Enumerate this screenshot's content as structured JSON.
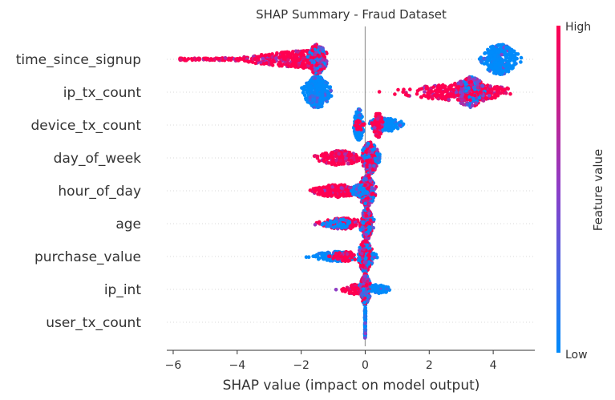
{
  "chart_data": {
    "type": "scatter",
    "title": "SHAP Summary - Fraud Dataset",
    "xlabel": "SHAP value (impact on model output)",
    "xlim": [
      -6.2,
      5.3
    ],
    "xticks": [
      -6,
      -4,
      -2,
      0,
      2,
      4
    ],
    "xtick_labels": [
      "−6",
      "−4",
      "−2",
      "0",
      "2",
      "4"
    ],
    "features": [
      {
        "name": "time_since_signup",
        "clusters": [
          {
            "x_min": -5.8,
            "x_max": -1.45,
            "center": -1.6,
            "spread": 2.6,
            "half_height": 0.55,
            "color": "high",
            "count": 420
          },
          {
            "x_min": -1.9,
            "x_max": -1.2,
            "center": -1.5,
            "spread": 0.4,
            "half_height": 0.95,
            "color": "mid",
            "count": 220
          },
          {
            "x_min": 3.2,
            "x_max": 4.9,
            "center": 4.2,
            "spread": 0.75,
            "half_height": 0.95,
            "color": "low",
            "count": 320
          }
        ]
      },
      {
        "name": "ip_tx_count",
        "clusters": [
          {
            "x_min": -2.1,
            "x_max": -0.9,
            "center": -1.5,
            "spread": 0.55,
            "half_height": 1.0,
            "color": "low",
            "count": 340
          },
          {
            "x_min": -0.9,
            "x_max": 4.6,
            "center": 3.0,
            "spread": 2.2,
            "half_height": 0.55,
            "color": "high",
            "count": 380
          },
          {
            "x_min": 2.6,
            "x_max": 4.7,
            "center": 3.3,
            "spread": 0.7,
            "half_height": 0.95,
            "color": "mid",
            "count": 180
          }
        ]
      },
      {
        "name": "device_tx_count",
        "clusters": [
          {
            "x_min": -0.4,
            "x_max": -0.05,
            "center": -0.2,
            "spread": 0.2,
            "half_height": 1.0,
            "color": "low",
            "count": 170
          },
          {
            "x_min": 0.1,
            "x_max": 1.5,
            "center": 0.6,
            "spread": 0.8,
            "half_height": 0.45,
            "color": "low",
            "count": 150
          },
          {
            "x_min": 0.2,
            "x_max": 0.55,
            "center": 0.4,
            "spread": 0.25,
            "half_height": 0.8,
            "color": "high",
            "count": 80
          },
          {
            "x_min": -0.4,
            "x_max": 0.0,
            "center": -0.2,
            "spread": 0.2,
            "half_height": 0.35,
            "color": "high",
            "count": 20
          }
        ]
      },
      {
        "name": "day_of_week",
        "clusters": [
          {
            "x_min": -1.6,
            "x_max": -0.2,
            "center": -0.8,
            "spread": 0.9,
            "half_height": 0.45,
            "color": "high",
            "count": 180
          },
          {
            "x_min": -0.2,
            "x_max": 0.5,
            "center": 0.15,
            "spread": 0.35,
            "half_height": 1.0,
            "color": "mid",
            "count": 260
          },
          {
            "x_min": 0.3,
            "x_max": 0.5,
            "center": 0.4,
            "spread": 0.15,
            "half_height": 0.3,
            "color": "low",
            "count": 25
          }
        ]
      },
      {
        "name": "hour_of_day",
        "clusters": [
          {
            "x_min": -1.95,
            "x_max": -0.3,
            "center": -0.9,
            "spread": 1.0,
            "half_height": 0.4,
            "color": "high",
            "count": 200
          },
          {
            "x_min": -0.3,
            "x_max": 0.45,
            "center": 0.05,
            "spread": 0.35,
            "half_height": 1.0,
            "color": "mid",
            "count": 260
          },
          {
            "x_min": -0.6,
            "x_max": 0.2,
            "center": -0.2,
            "spread": 0.4,
            "half_height": 0.35,
            "color": "low",
            "count": 40
          }
        ]
      },
      {
        "name": "age",
        "clusters": [
          {
            "x_min": -1.6,
            "x_max": -0.2,
            "center": -0.7,
            "spread": 0.9,
            "half_height": 0.35,
            "color": "high",
            "count": 160
          },
          {
            "x_min": -0.2,
            "x_max": 0.35,
            "center": 0.05,
            "spread": 0.25,
            "half_height": 1.0,
            "color": "mid",
            "count": 220
          },
          {
            "x_min": -1.6,
            "x_max": -0.4,
            "center": -0.9,
            "spread": 0.7,
            "half_height": 0.3,
            "color": "low",
            "count": 40
          }
        ]
      },
      {
        "name": "purchase_value",
        "clusters": [
          {
            "x_min": -1.85,
            "x_max": -0.3,
            "center": -0.9,
            "spread": 1.0,
            "half_height": 0.3,
            "color": "low",
            "count": 170
          },
          {
            "x_min": -1.2,
            "x_max": -0.3,
            "center": -0.6,
            "spread": 0.6,
            "half_height": 0.3,
            "color": "high",
            "count": 60
          },
          {
            "x_min": -0.3,
            "x_max": 0.3,
            "center": 0.0,
            "spread": 0.3,
            "half_height": 1.0,
            "color": "mid",
            "count": 240
          },
          {
            "x_min": 0.2,
            "x_max": 0.55,
            "center": 0.3,
            "spread": 0.2,
            "half_height": 0.2,
            "color": "low",
            "count": 10
          }
        ]
      },
      {
        "name": "ip_int",
        "clusters": [
          {
            "x_min": -0.95,
            "x_max": -0.1,
            "center": -0.3,
            "spread": 0.5,
            "half_height": 0.3,
            "color": "high",
            "count": 90
          },
          {
            "x_min": -0.2,
            "x_max": 0.25,
            "center": 0.0,
            "spread": 0.2,
            "half_height": 1.0,
            "color": "mid",
            "count": 200
          },
          {
            "x_min": 0.2,
            "x_max": 0.9,
            "center": 0.4,
            "spread": 0.45,
            "half_height": 0.3,
            "color": "low",
            "count": 70
          }
        ]
      },
      {
        "name": "user_tx_count",
        "clusters": [
          {
            "x_min": -0.03,
            "x_max": 0.03,
            "center": 0.0,
            "spread": 0.02,
            "half_height": 1.0,
            "color": "low",
            "count": 90
          }
        ]
      }
    ],
    "colorbar": {
      "high_label": "High",
      "low_label": "Low",
      "title": "Feature value",
      "high_color": "#ff0051",
      "low_color": "#008bfb",
      "mid_color": "#8c3ec8"
    },
    "zero_line_color": "#999999",
    "grid_color": "#cccccc"
  }
}
